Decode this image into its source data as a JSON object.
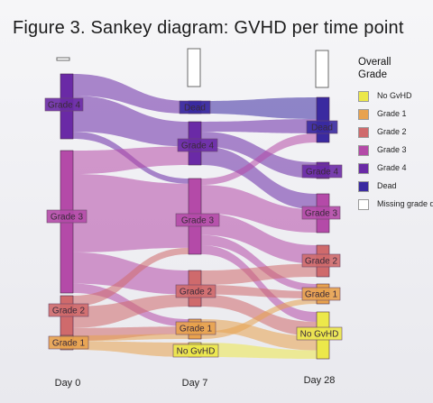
{
  "figure": {
    "title": "Figure 3. Sankey diagram: GVHD per time point"
  },
  "legend": {
    "title": "Overall Grade",
    "items": [
      {
        "label": "No GvHD",
        "color": "#ece84a"
      },
      {
        "label": "Grade 1",
        "color": "#e8a24e"
      },
      {
        "label": "Grade 2",
        "color": "#cf6a6c"
      },
      {
        "label": "Grade 3",
        "color": "#b44aa8"
      },
      {
        "label": "Grade 4",
        "color": "#6a2aa6"
      },
      {
        "label": "Dead",
        "color": "#3a2aa0"
      },
      {
        "label": "Missing grade d",
        "color": "#ffffff"
      }
    ]
  },
  "time_points": [
    "Day 0",
    "Day 7",
    "Day 28"
  ],
  "nodes": {
    "d0_g4": {
      "label": "Grade 4",
      "category": "Grade 4"
    },
    "d0_g3": {
      "label": "Grade 3",
      "category": "Grade 3"
    },
    "d0_g2": {
      "label": "Grade 2",
      "category": "Grade 2"
    },
    "d0_g1": {
      "label": "Grade 1",
      "category": "Grade 1"
    },
    "d7_dead": {
      "label": "Dead",
      "category": "Dead"
    },
    "d7_g4": {
      "label": "Grade 4",
      "category": "Grade 4"
    },
    "d7_g3": {
      "label": "Grade 3",
      "category": "Grade 3"
    },
    "d7_g2": {
      "label": "Grade 2",
      "category": "Grade 2"
    },
    "d7_g1": {
      "label": "Grade 1",
      "category": "Grade 1"
    },
    "d7_nogvhd": {
      "label": "No GvHD",
      "category": "No GvHD"
    },
    "d28_dead": {
      "label": "Dead",
      "category": "Dead"
    },
    "d28_g4": {
      "label": "Grade 4",
      "category": "Grade 4"
    },
    "d28_g3": {
      "label": "Grade 3",
      "category": "Grade 3"
    },
    "d28_g2": {
      "label": "Grade 2",
      "category": "Grade 2"
    },
    "d28_g1": {
      "label": "Grade 1",
      "category": "Grade 1"
    },
    "d28_nogvhd": {
      "label": "No GvHD",
      "category": "No GvHD"
    }
  },
  "chart_data": {
    "type": "sankey",
    "title": "Figure 3. Sankey diagram: GVHD per time point",
    "stages": [
      "Day 0",
      "Day 7",
      "Day 28"
    ],
    "categories": [
      "No GvHD",
      "Grade 1",
      "Grade 2",
      "Grade 3",
      "Grade 4",
      "Dead",
      "Missing grade d"
    ],
    "flows": [
      {
        "from": "Day 0 Grade 4",
        "to": "Day 7 Dead",
        "value": 12
      },
      {
        "from": "Day 0 Grade 4",
        "to": "Day 7 Grade 4",
        "value": 20
      },
      {
        "from": "Day 0 Grade 4",
        "to": "Day 7 Grade 3",
        "value": 4
      },
      {
        "from": "Day 0 Grade 3",
        "to": "Day 7 Grade 4",
        "value": 15
      },
      {
        "from": "Day 0 Grade 3",
        "to": "Day 7 Grade 3",
        "value": 50
      },
      {
        "from": "Day 0 Grade 3",
        "to": "Day 7 Grade 2",
        "value": 20
      },
      {
        "from": "Day 0 Grade 3",
        "to": "Day 7 Grade 1",
        "value": 6
      },
      {
        "from": "Day 0 Grade 2",
        "to": "Day 7 Grade 3",
        "value": 5
      },
      {
        "from": "Day 0 Grade 2",
        "to": "Day 7 Grade 2",
        "value": 10
      },
      {
        "from": "Day 0 Grade 2",
        "to": "Day 7 Grade 1",
        "value": 6
      },
      {
        "from": "Day 0 Grade 1",
        "to": "Day 7 Grade 1",
        "value": 4
      },
      {
        "from": "Day 0 Grade 1",
        "to": "Day 7 No GvHD",
        "value": 6
      },
      {
        "from": "Day 7 Dead",
        "to": "Day 28 Dead",
        "value": 12
      },
      {
        "from": "Day 7 Grade 4",
        "to": "Day 28 Dead",
        "value": 8
      },
      {
        "from": "Day 7 Grade 4",
        "to": "Day 28 Grade 4",
        "value": 12
      },
      {
        "from": "Day 7 Grade 4",
        "to": "Day 28 Grade 3",
        "value": 15
      },
      {
        "from": "Day 7 Grade 3",
        "to": "Day 28 Dead",
        "value": 5
      },
      {
        "from": "Day 7 Grade 3",
        "to": "Day 28 Grade 3",
        "value": 22
      },
      {
        "from": "Day 7 Grade 3",
        "to": "Day 28 Grade 2",
        "value": 17
      },
      {
        "from": "Day 7 Grade 3",
        "to": "Day 28 Grade 1",
        "value": 8
      },
      {
        "from": "Day 7 Grade 3",
        "to": "Day 28 No GvHD",
        "value": 7
      },
      {
        "from": "Day 7 Grade 2",
        "to": "Day 28 Grade 2",
        "value": 12
      },
      {
        "from": "Day 7 Grade 2",
        "to": "Day 28 Grade 1",
        "value": 8
      },
      {
        "from": "Day 7 Grade 2",
        "to": "Day 28 No GvHD",
        "value": 10
      },
      {
        "from": "Day 7 Grade 1",
        "to": "Day 28 No GvHD",
        "value": 10
      },
      {
        "from": "Day 7 Grade 1",
        "to": "Day 28 Grade 1",
        "value": 6
      },
      {
        "from": "Day 7 No GvHD",
        "to": "Day 28 No GvHD",
        "value": 6
      }
    ]
  }
}
